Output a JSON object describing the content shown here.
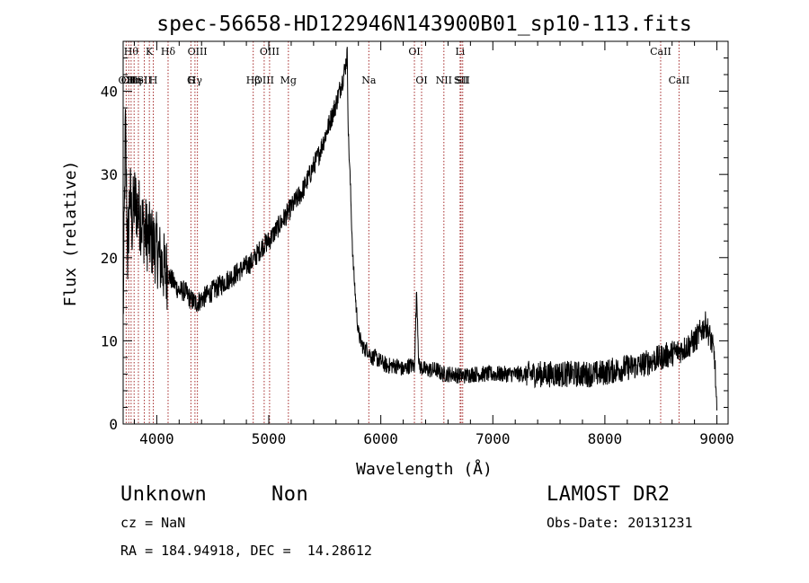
{
  "chart_data": {
    "type": "line",
    "title": "spec-56658-HD122946N143900B01_sp10-113.fits",
    "xlabel": "Wavelength (Å)",
    "ylabel": "Flux (relative)",
    "xlim": [
      3700,
      9100
    ],
    "ylim": [
      0,
      46
    ],
    "x_ticks": [
      4000,
      5000,
      6000,
      7000,
      8000,
      9000
    ],
    "y_ticks": [
      0,
      10,
      20,
      30,
      40
    ],
    "x_minor_step": 200,
    "y_minor_step": 2,
    "grid": false,
    "line_color": "#000000",
    "line_marker_color": "#a52a2a",
    "series": [
      {
        "x": [
          3700,
          3720,
          3740,
          3760,
          3780,
          3800,
          3850,
          3900,
          3950,
          4000,
          4050,
          4100,
          4150,
          4200,
          4250,
          4300,
          4350,
          4400,
          4450,
          4500,
          4550,
          4600,
          4650,
          4700,
          4750,
          4800,
          4850,
          4900,
          4950,
          5000,
          5050,
          5100,
          5150,
          5200,
          5250,
          5300,
          5350,
          5400,
          5450,
          5500,
          5550,
          5600,
          5640,
          5670,
          5690,
          5700,
          5710,
          5730,
          5750,
          5780,
          5800,
          5820,
          5850,
          5880,
          5900,
          5920,
          5950,
          6000,
          6050,
          6100,
          6150,
          6200,
          6250,
          6300,
          6320,
          6340,
          6400,
          6450,
          6500,
          6550,
          6600,
          6650,
          6700,
          6750,
          6800,
          6900,
          7000,
          7100,
          7200,
          7300,
          7400,
          7500,
          7600,
          7700,
          7800,
          7900,
          8000,
          8100,
          8200,
          8300,
          8400,
          8500,
          8600,
          8700,
          8800,
          8850,
          8900,
          8950,
          8980,
          9000
        ],
        "values": [
          12,
          36,
          20,
          28,
          24,
          27,
          25,
          23,
          22,
          21,
          19,
          18,
          17,
          16,
          16,
          15,
          14.5,
          15,
          15.5,
          16,
          16.5,
          17,
          17.5,
          18,
          18.5,
          19,
          19.5,
          20.5,
          21.5,
          22,
          23,
          24,
          25,
          26,
          27,
          28,
          29.5,
          31,
          32.5,
          34.5,
          36.5,
          38.5,
          40.5,
          42,
          43.5,
          44.5,
          35,
          28,
          20,
          14,
          11,
          10,
          9,
          9,
          8.5,
          8,
          8,
          7.5,
          7,
          7,
          7,
          6.5,
          7,
          7,
          16,
          7,
          6.5,
          6.5,
          6.5,
          6,
          6,
          6,
          5.8,
          5.8,
          6,
          6,
          6,
          6,
          6,
          6,
          6,
          6,
          6,
          6,
          6,
          6,
          6.2,
          6.5,
          6.8,
          7,
          7.5,
          8,
          8.5,
          9,
          10,
          11,
          12,
          10,
          8,
          1
        ]
      }
    ],
    "line_markers": [
      {
        "x": 3727,
        "upper": "",
        "lower": "OII"
      },
      {
        "x": 3750,
        "upper": "",
        "lower": "CII"
      },
      {
        "x": 3771,
        "upper": "Hθ",
        "lower": ""
      },
      {
        "x": 3798,
        "upper": "",
        "lower": "Hη"
      },
      {
        "x": 3836,
        "upper": "",
        "lower": "HeI"
      },
      {
        "x": 3889,
        "upper": "",
        "lower": "SII"
      },
      {
        "x": 3934,
        "upper": "K",
        "lower": ""
      },
      {
        "x": 3969,
        "upper": "",
        "lower": "H"
      },
      {
        "x": 4101,
        "upper": "Hδ",
        "lower": ""
      },
      {
        "x": 4305,
        "upper": "",
        "lower": "G"
      },
      {
        "x": 4341,
        "upper": "",
        "lower": "Hγ"
      },
      {
        "x": 4363,
        "upper": "OIII",
        "lower": ""
      },
      {
        "x": 4861,
        "upper": "",
        "lower": "Hβ"
      },
      {
        "x": 4959,
        "upper": "",
        "lower": "OIII"
      },
      {
        "x": 5007,
        "upper": "OIII",
        "lower": ""
      },
      {
        "x": 5175,
        "upper": "",
        "lower": "Mg"
      },
      {
        "x": 5893,
        "upper": "",
        "lower": "Na"
      },
      {
        "x": 6300,
        "upper": "OI",
        "lower": ""
      },
      {
        "x": 6364,
        "upper": "",
        "lower": "OI"
      },
      {
        "x": 6563,
        "upper": "",
        "lower": "NII"
      },
      {
        "x": 6708,
        "upper": "Li",
        "lower": ""
      },
      {
        "x": 6716,
        "upper": "",
        "lower": "SII"
      },
      {
        "x": 6731,
        "upper": "",
        "lower": "SII"
      },
      {
        "x": 8498,
        "upper": "CaII",
        "lower": ""
      },
      {
        "x": 8662,
        "upper": "",
        "lower": "CaII"
      }
    ]
  },
  "info": {
    "class_label": "Unknown",
    "subclass_label": "Non",
    "survey_label": "LAMOST DR2",
    "cz_text": "cz = NaN",
    "obs_date_text": "Obs-Date: 20131231",
    "coords_text": "RA = 184.94918, DEC =  14.28612"
  }
}
